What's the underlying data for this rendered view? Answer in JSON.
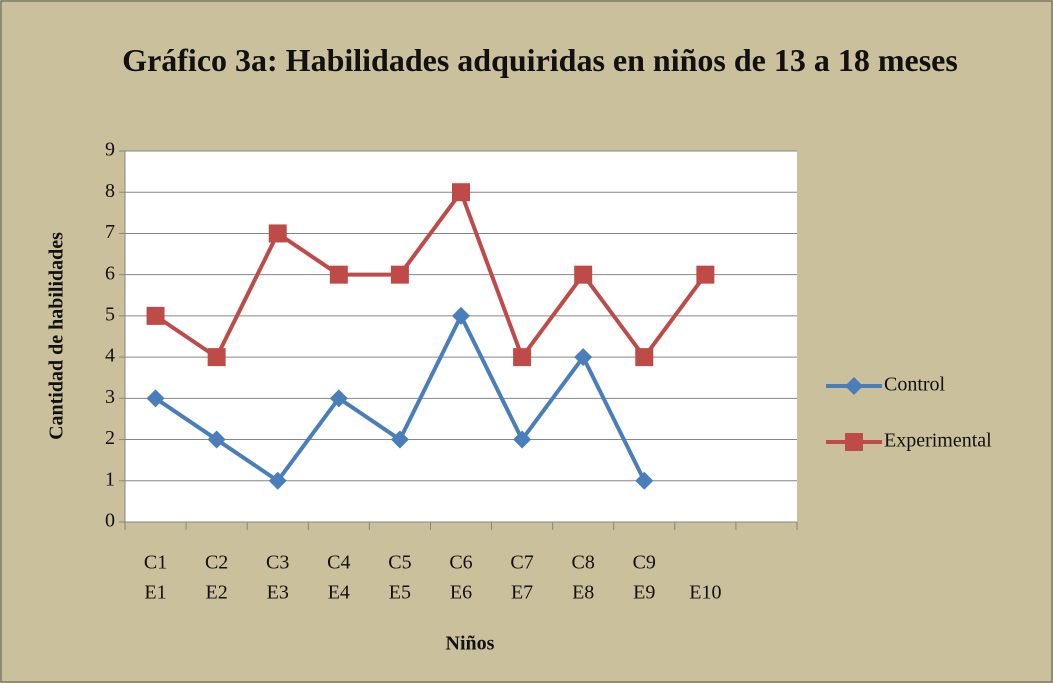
{
  "chart_data": {
    "type": "line",
    "title": "Gráfico 3a: Habilidades adquiridas en niños de 13 a 18 meses",
    "x_label": "Niños",
    "y_label": "Cantidad de habilidades",
    "categories": [
      [
        "C1",
        "E1"
      ],
      [
        "C2",
        "E2"
      ],
      [
        "C3",
        "E3"
      ],
      [
        "C4",
        "E4"
      ],
      [
        "C5",
        "E5"
      ],
      [
        "C6",
        "E6"
      ],
      [
        "C7",
        "E7"
      ],
      [
        "C8",
        "E8"
      ],
      [
        "C9",
        "E9"
      ],
      [
        "E10"
      ],
      null
    ],
    "series": [
      {
        "name": "Control",
        "color": "#4a7ebb",
        "marker": "diamond",
        "values": [
          3,
          2,
          1,
          3,
          2,
          5,
          2,
          4,
          1,
          null,
          null
        ]
      },
      {
        "name": "Experimental",
        "color": "#be4b48",
        "marker": "square",
        "values": [
          5,
          4,
          7,
          6,
          6,
          8,
          4,
          6,
          4,
          6,
          null
        ]
      }
    ],
    "ylim": [
      0,
      9
    ],
    "yticks": [
      0,
      1,
      2,
      3,
      4,
      5,
      6,
      7,
      8,
      9
    ],
    "grid": true,
    "legend": "right"
  }
}
